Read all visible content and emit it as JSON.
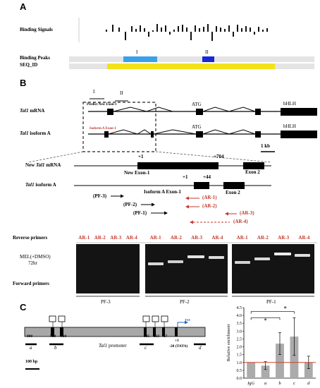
{
  "panel_a": {
    "letter": "A",
    "binding_signals_label": "Binding Signals",
    "binding_peaks_label": "Binding Peaks",
    "seq_id_label": "SEQ_ID",
    "peak_1": "I",
    "peak_2": "II",
    "colors": {
      "peak_1": "#3aa0e8",
      "peak_2": "#1a27d8",
      "seq_bar": "#f2e21a",
      "track_bg": "#e4e4e4"
    }
  },
  "panel_b": {
    "letter": "B",
    "region_i": "I",
    "region_ii": "II",
    "predict_label": "Predict New Exon-1",
    "isoform_exon_label": "Isoform A Exon-1",
    "mrna_label_italic": "Tal1",
    "mrna_label_rest": "mRNA",
    "isoform_label_italic": "Tal1",
    "isoform_label_rest": "isoform A",
    "atg_1": "ATG",
    "atg_2": "ATG",
    "bhlh_1": "bHLH",
    "bhlh_2": "bHLH",
    "scale_label": "1 kb",
    "zoom": {
      "new_mrna_prefix": "New",
      "new_mrna_italic": "Tal1",
      "new_mrna_suffix": "mRNA",
      "isoform_italic": "Tal1",
      "isoform_suffix": "isoform A",
      "plus1_top": "+1",
      "plus704": "+704",
      "new_exon1": "New Exon-1",
      "exon2_top": "Exon 2",
      "plus1_bottom": "+1",
      "plus44": "+44",
      "isoform_exon1": "Isoform A Exon-1",
      "exon2_bottom": "Exon 2",
      "pf3": "(PF-3)",
      "pf2": "(PF-2)",
      "pf1": "(PF-1)",
      "ar1": "(AR-1)",
      "ar2": "(AR-2)",
      "ar3": "(AR-3)",
      "ar4": "(AR-4)"
    },
    "gel": {
      "reverse_label": "Reverse primers",
      "forward_label": "Forward primers",
      "sample_line1": "MEL(+DMSO)",
      "sample_line2": "72hr",
      "lane_labels": [
        "AR-1",
        "AR-2",
        "AR-3",
        "AR-4"
      ],
      "groups": [
        "PF-3",
        "PF-2",
        "PF-1"
      ]
    }
  },
  "panel_c": {
    "letter": "C",
    "positions": {
      "p900": "-900",
      "p788": "-788",
      "p710": "-710",
      "p185": "-185",
      "p133": "-133",
      "p57": "-57",
      "plus1": "+1",
      "p28": "-28 (TATA)"
    },
    "tss": "TSS",
    "promoter_italic": "Tal1",
    "promoter_rest": "promoter",
    "region_letters": [
      "a",
      "b",
      "c",
      "d"
    ],
    "scale_label": "100 bp",
    "chart_data": {
      "type": "bar",
      "categories": [
        "IgG",
        "a",
        "b",
        "c",
        "d"
      ],
      "values": [
        1.0,
        0.8,
        2.2,
        2.65,
        1.0
      ],
      "errors": [
        0.0,
        0.25,
        0.7,
        1.2,
        0.4
      ],
      "ylabel": "Relative enrichment",
      "ylim": [
        0,
        4.5
      ],
      "yticks": [
        "0.0",
        "0.5",
        "1.0",
        "1.5",
        "2.0",
        "2.5",
        "3.0",
        "3.5",
        "4.0",
        "4.5"
      ],
      "reference_line": 1.0,
      "significance": [
        "*",
        "*"
      ],
      "colors": {
        "bar": "#ababab",
        "reference": "#d0402b"
      }
    }
  }
}
